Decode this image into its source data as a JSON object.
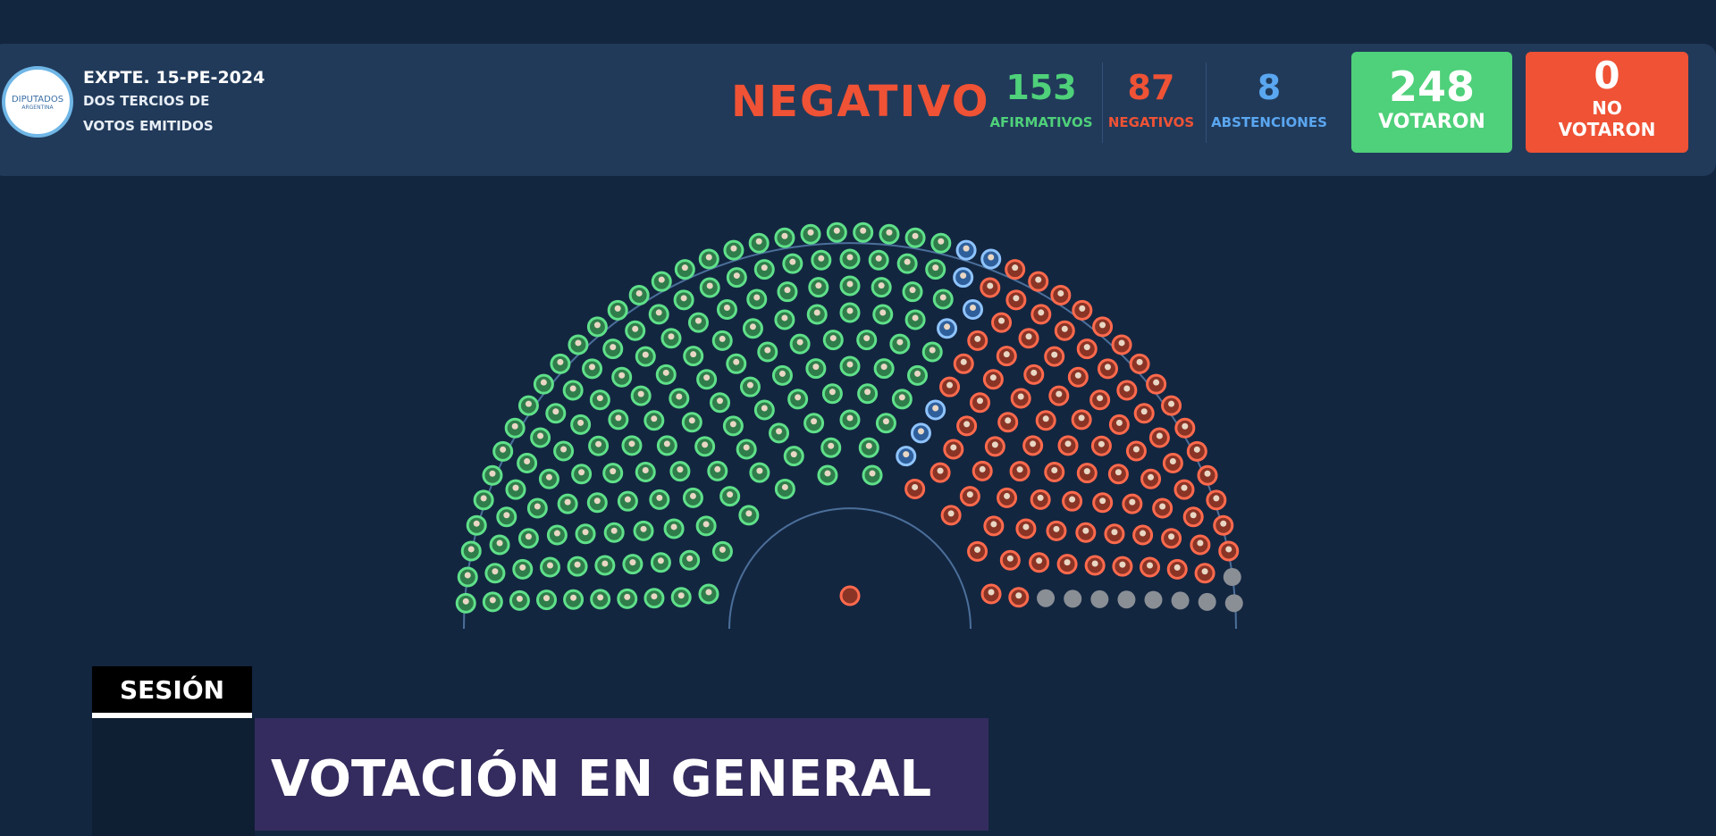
{
  "header": {
    "logo": {
      "line1": "DIPUTADOS",
      "line2": "ARGENTINA"
    },
    "expte": "EXPTE. 15-PE-2024",
    "subtitle_1": "DOS TERCIOS DE",
    "subtitle_2": "VOTOS EMITIDOS",
    "result": "NEGATIVO",
    "afirmativos": {
      "value": 153,
      "label": "AFIRMATIVOS"
    },
    "negativos": {
      "value": 87,
      "label": "NEGATIVOS"
    },
    "abstenciones": {
      "value": 8,
      "label": "ABSTENCIONES"
    },
    "votaron": {
      "value": 248,
      "label": "VOTARON"
    },
    "no_votaron": {
      "value": 0,
      "label_1": "NO",
      "label_2": "VOTARON"
    }
  },
  "footer": {
    "tag": "SESIÓN",
    "title": "VOTACIÓN EN GENERAL"
  }
}
